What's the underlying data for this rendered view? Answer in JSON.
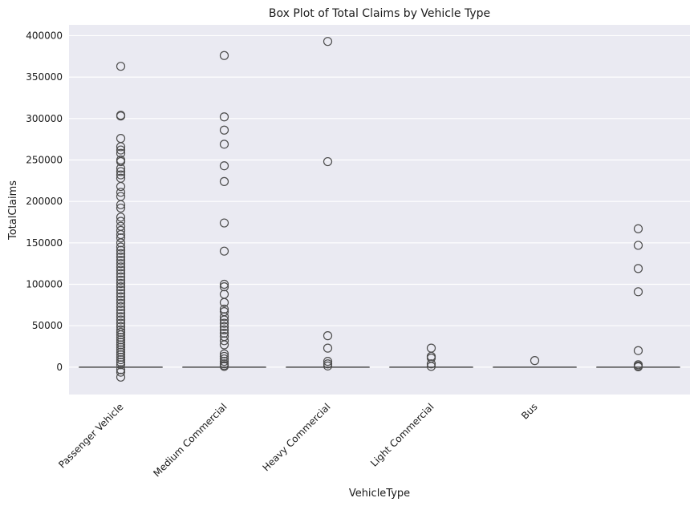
{
  "chart_data": {
    "type": "box",
    "title": "Box Plot of Total Claims by Vehicle Type",
    "xlabel": "VehicleType",
    "ylabel": "TotalClaims",
    "ylim": [
      -33000,
      413000
    ],
    "yticks": [
      0,
      50000,
      100000,
      150000,
      200000,
      250000,
      300000,
      350000,
      400000
    ],
    "grid": true,
    "categories": [
      "Passenger Vehicle",
      "Medium Commercial",
      "Heavy Commercial",
      "Light Commercial",
      "Bus",
      ""
    ],
    "boxes": [
      {
        "category": "Passenger Vehicle",
        "whisker_low": 0,
        "q1": 0,
        "median": 0,
        "q3": 0,
        "whisker_high": 0,
        "outliers": [
          363000,
          304000,
          303000,
          276000,
          266000,
          262000,
          258000,
          250000,
          248000,
          240000,
          236000,
          232000,
          228000,
          218000,
          211000,
          206000,
          196000,
          192000,
          181000,
          176000,
          170000,
          165000,
          160000,
          156000,
          150000,
          145000,
          141000,
          137000,
          133000,
          129000,
          125000,
          121000,
          117000,
          113000,
          109000,
          105000,
          101000,
          97000,
          93000,
          89000,
          85000,
          81000,
          77000,
          73000,
          69000,
          65000,
          61000,
          57000,
          53000,
          49000,
          45000,
          42000,
          39000,
          36000,
          33000,
          30000,
          27000,
          24000,
          21000,
          18000,
          15000,
          12000,
          9000,
          6000,
          3000,
          -3000,
          -6000,
          -12000
        ]
      },
      {
        "category": "Medium Commercial",
        "whisker_low": 0,
        "q1": 0,
        "median": 0,
        "q3": 0,
        "whisker_high": 0,
        "outliers": [
          376000,
          302000,
          286000,
          269000,
          243000,
          224000,
          174000,
          140000,
          100000,
          97000,
          88000,
          78000,
          70000,
          67000,
          61000,
          57000,
          53000,
          49000,
          45000,
          41000,
          37000,
          32000,
          27000,
          16000,
          13000,
          10000,
          7000,
          4000,
          2000,
          1000
        ]
      },
      {
        "category": "Heavy Commercial",
        "whisker_low": 0,
        "q1": 0,
        "median": 0,
        "q3": 0,
        "whisker_high": 0,
        "outliers": [
          393000,
          248000,
          38000,
          23000,
          7000,
          4000,
          1500
        ]
      },
      {
        "category": "Light Commercial",
        "whisker_low": 0,
        "q1": 0,
        "median": 0,
        "q3": 0,
        "whisker_high": 0,
        "outliers": [
          23000,
          13000,
          11000,
          4000,
          1000
        ]
      },
      {
        "category": "Bus",
        "whisker_low": 0,
        "q1": 0,
        "median": 0,
        "q3": 0,
        "whisker_high": 0,
        "outliers": [
          8000
        ]
      },
      {
        "category": "",
        "whisker_low": 0,
        "q1": 0,
        "median": 0,
        "q3": 0,
        "whisker_high": 0,
        "outliers": [
          167000,
          147000,
          119000,
          91000,
          20000,
          3000,
          1500,
          500
        ]
      }
    ],
    "colors": {
      "plot_background": "#eaeaf2",
      "grid": "#ffffff",
      "box": "#4d4d4d"
    }
  }
}
